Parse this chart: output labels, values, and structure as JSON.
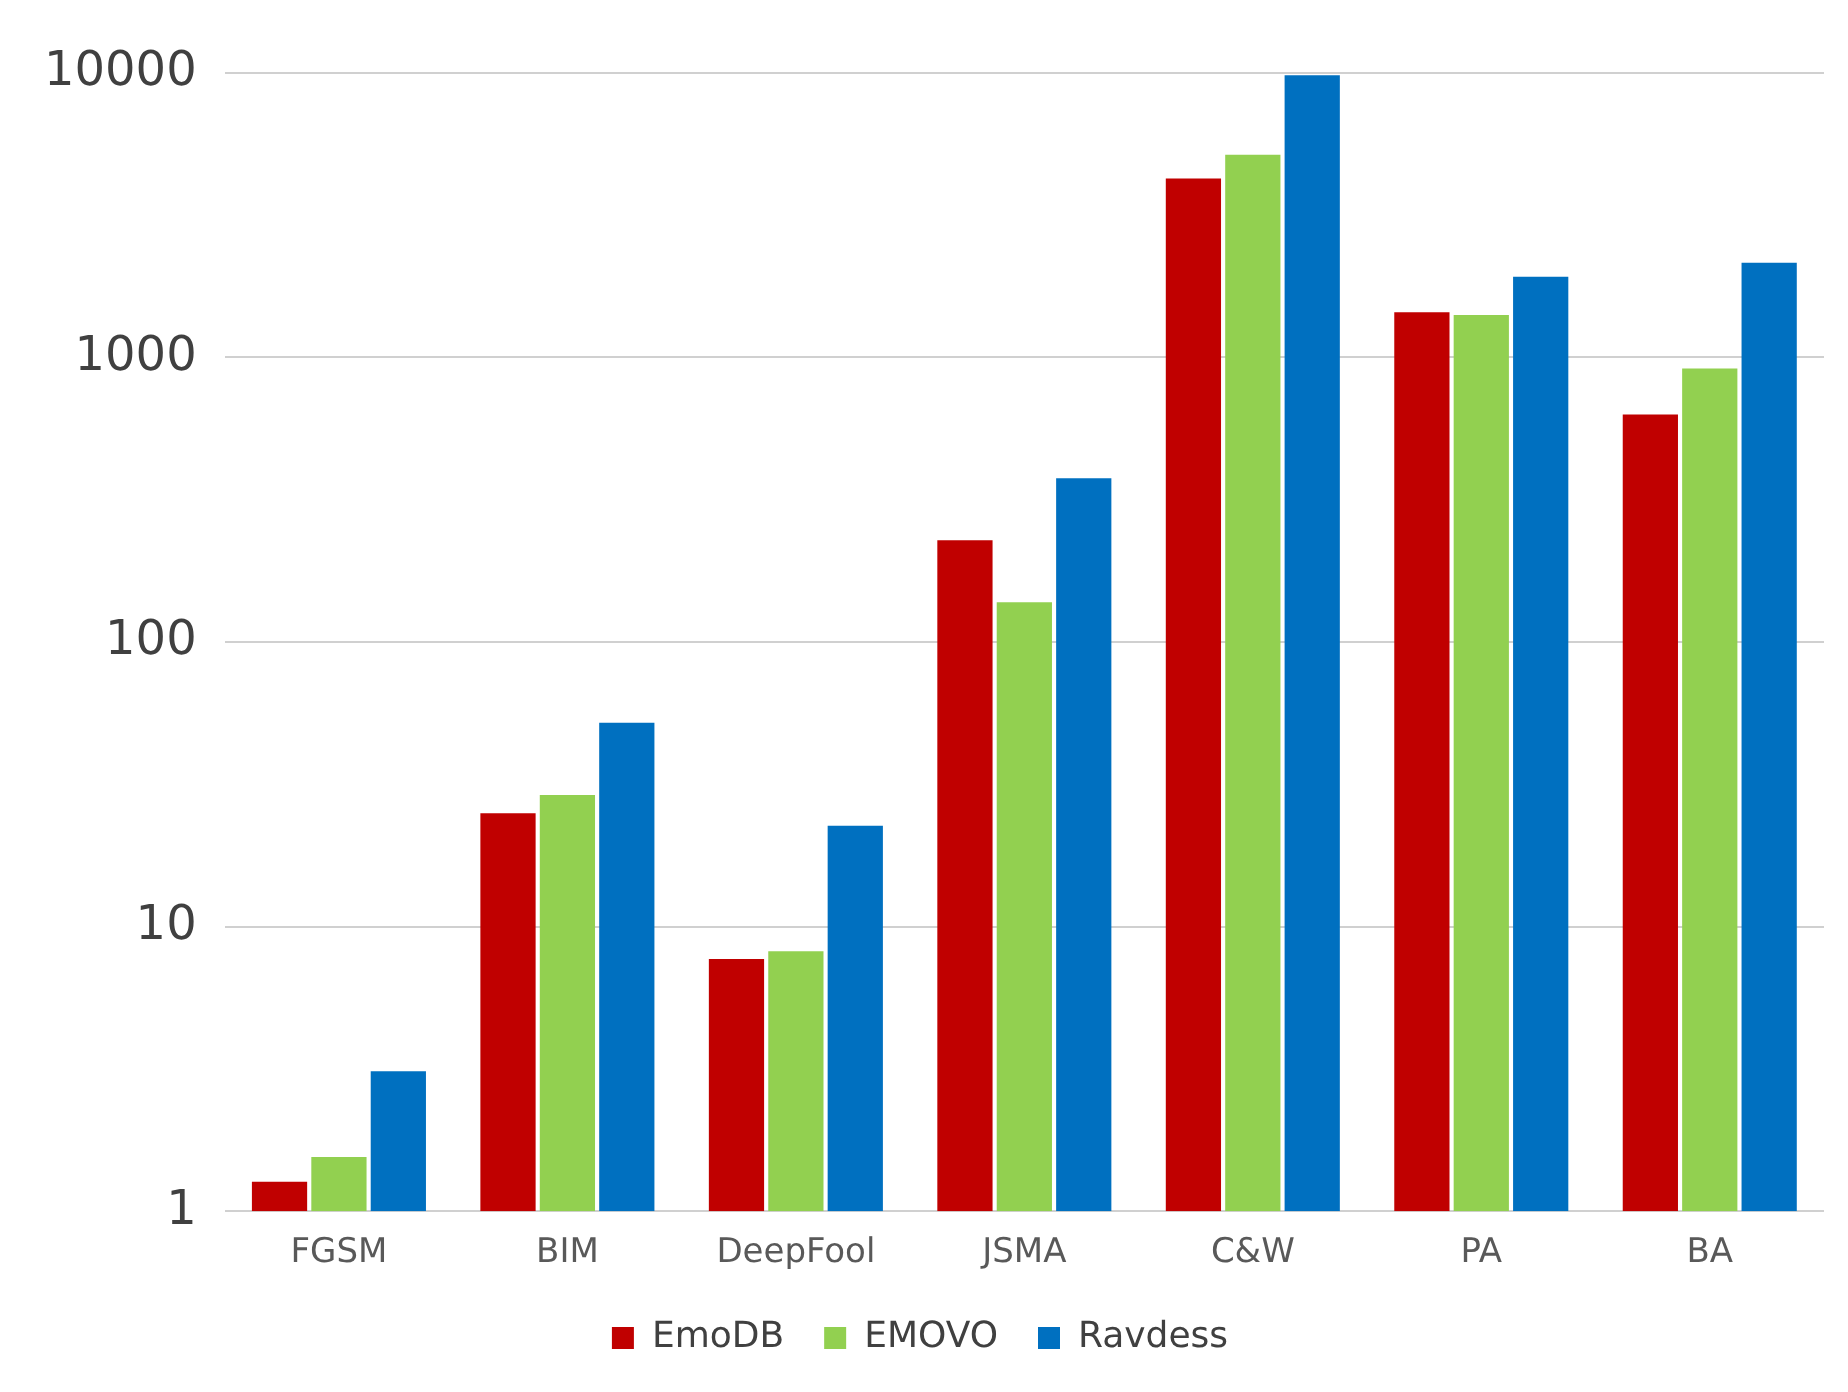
{
  "chart_data": {
    "type": "bar",
    "categories": [
      "FGSM",
      "BIM",
      "DeepFool",
      "JSMA",
      "C&W",
      "PA",
      "BA"
    ],
    "series": [
      {
        "name": "EmoDB",
        "color": "#c00000",
        "values": [
          1.27,
          25,
          7.7,
          228,
          4250,
          1440,
          630
        ]
      },
      {
        "name": "EMOVO",
        "color": "#92d050",
        "values": [
          1.55,
          29,
          8.2,
          138,
          5150,
          1410,
          915
        ]
      },
      {
        "name": "Ravdess",
        "color": "#0070c0",
        "values": [
          3.1,
          52,
          22.6,
          376,
          9800,
          1920,
          2150
        ]
      }
    ],
    "log": true,
    "ylim": [
      1,
      10000
    ],
    "yticks": [
      1,
      10,
      100,
      1000,
      10000
    ],
    "grid": "y",
    "legend": "bottom"
  }
}
